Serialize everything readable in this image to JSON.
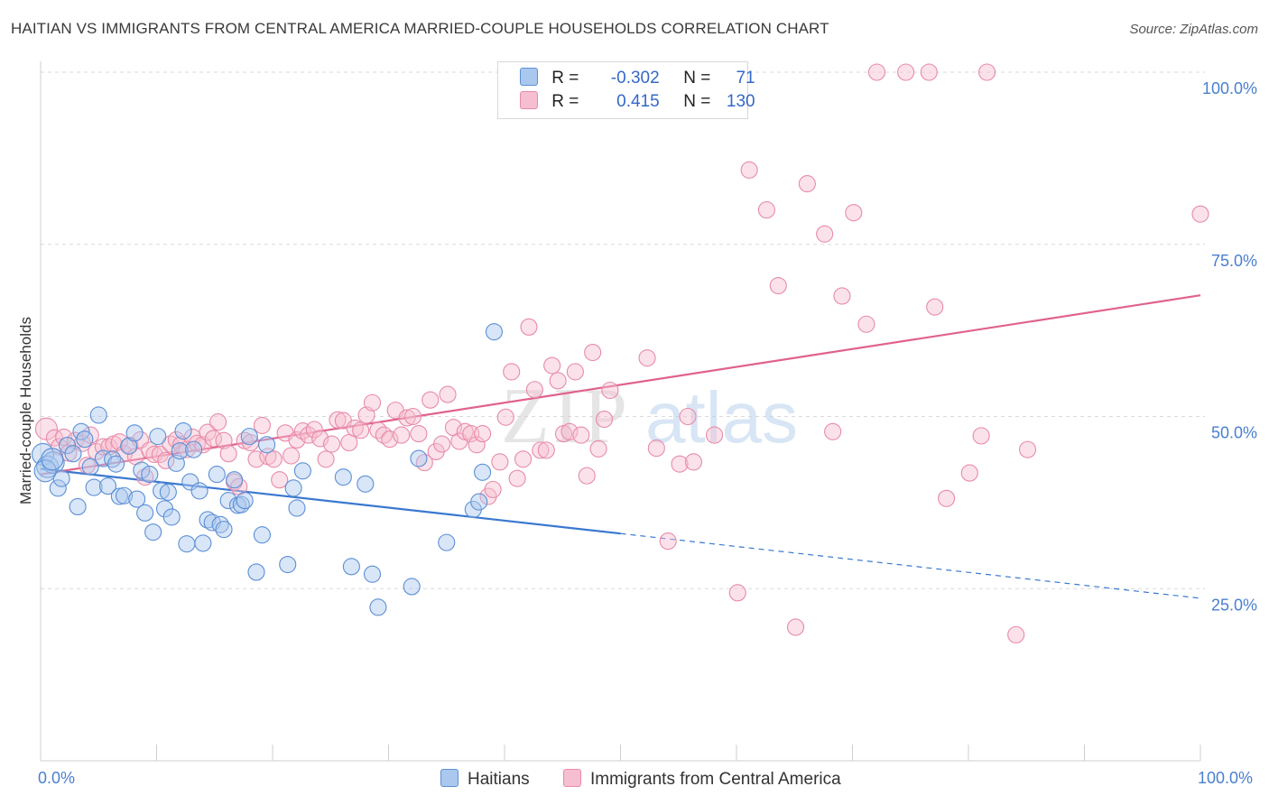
{
  "title": "HAITIAN VS IMMIGRANTS FROM CENTRAL AMERICA MARRIED-COUPLE HOUSEHOLDS CORRELATION CHART",
  "source": "Source: ZipAtlas.com",
  "watermark": {
    "zip": "ZIP",
    "atlas": "atlas"
  },
  "colors": {
    "blue_fill": "#aac8ee",
    "blue_stroke": "#5b8fd6",
    "blue_line": "#3a78d0",
    "pink_fill": "#f6bfd1",
    "pink_stroke": "#e88aa8",
    "pink_line": "#e0628c",
    "grid": "#d9d9d9",
    "tick_text": "#4a7fd0"
  },
  "legend": {
    "rows": [
      {
        "r_label": "R =",
        "r_value": "-0.302",
        "n_label": "N =",
        "n_value": "71"
      },
      {
        "r_label": "R =",
        "r_value": "0.415",
        "n_label": "N =",
        "n_value": "130"
      }
    ]
  },
  "bottom_legend": {
    "haitians": "Haitians",
    "central_america": "Immigrants from Central America"
  },
  "chart_data": {
    "type": "scatter",
    "title": "HAITIAN VS IMMIGRANTS FROM CENTRAL AMERICA MARRIED-COUPLE HOUSEHOLDS CORRELATION CHART",
    "xlabel": "",
    "ylabel": "Married-couple Households",
    "xlim": [
      0,
      100
    ],
    "ylim": [
      0,
      102
    ],
    "x_tick_labels": {
      "min": "0.0%",
      "max": "100.0%"
    },
    "y_ticks": [
      {
        "value": 25,
        "label": "25.0%"
      },
      {
        "value": 50,
        "label": "50.0%"
      },
      {
        "value": 75,
        "label": "75.0%"
      },
      {
        "value": 100,
        "label": "100.0%"
      }
    ],
    "grid": true,
    "legend_position": "top-center",
    "series": [
      {
        "name": "Haitians",
        "color": "blue",
        "trend": {
          "x0": 0,
          "y0": 42.4,
          "x1": 50,
          "y1": 33.0,
          "dashed_to_x": 100,
          "dashed_to_y": 23.6
        },
        "points": [
          [
            0.2,
            44.5
          ],
          [
            0.6,
            42.7
          ],
          [
            1.1,
            43.3
          ],
          [
            1.5,
            39.6
          ],
          [
            1.8,
            41.0
          ],
          [
            2.3,
            45.8
          ],
          [
            2.8,
            44.6
          ],
          [
            3.2,
            36.9
          ],
          [
            3.5,
            47.8
          ],
          [
            3.8,
            46.7
          ],
          [
            4.3,
            42.7
          ],
          [
            4.6,
            39.7
          ],
          [
            5.0,
            50.2
          ],
          [
            5.4,
            43.9
          ],
          [
            5.8,
            39.9
          ],
          [
            6.2,
            43.8
          ],
          [
            6.5,
            43.1
          ],
          [
            6.8,
            38.4
          ],
          [
            7.2,
            38.5
          ],
          [
            7.6,
            45.7
          ],
          [
            8.1,
            47.6
          ],
          [
            8.3,
            38.0
          ],
          [
            8.7,
            42.2
          ],
          [
            9.0,
            36.0
          ],
          [
            9.4,
            41.6
          ],
          [
            9.7,
            33.2
          ],
          [
            10.1,
            47.1
          ],
          [
            10.4,
            39.2
          ],
          [
            10.7,
            36.6
          ],
          [
            11.0,
            39.0
          ],
          [
            11.3,
            35.4
          ],
          [
            11.7,
            43.2
          ],
          [
            12.0,
            45.0
          ],
          [
            12.3,
            47.9
          ],
          [
            12.6,
            31.5
          ],
          [
            12.9,
            40.5
          ],
          [
            13.2,
            45.2
          ],
          [
            13.7,
            39.2
          ],
          [
            14.0,
            31.6
          ],
          [
            14.4,
            35.0
          ],
          [
            14.8,
            34.6
          ],
          [
            15.2,
            41.6
          ],
          [
            15.5,
            34.3
          ],
          [
            15.8,
            33.6
          ],
          [
            16.2,
            37.8
          ],
          [
            16.7,
            40.8
          ],
          [
            17.0,
            37.1
          ],
          [
            17.3,
            37.2
          ],
          [
            17.6,
            37.8
          ],
          [
            18.0,
            47.1
          ],
          [
            18.6,
            27.4
          ],
          [
            19.1,
            32.8
          ],
          [
            19.5,
            45.9
          ],
          [
            21.3,
            28.5
          ],
          [
            21.8,
            39.6
          ],
          [
            22.1,
            36.7
          ],
          [
            22.6,
            42.1
          ],
          [
            26.1,
            41.2
          ],
          [
            26.8,
            28.2
          ],
          [
            28.0,
            40.2
          ],
          [
            28.6,
            27.1
          ],
          [
            29.1,
            22.3
          ],
          [
            32.0,
            25.3
          ],
          [
            32.6,
            43.9
          ],
          [
            35.0,
            31.7
          ],
          [
            37.3,
            36.5
          ],
          [
            37.8,
            37.6
          ],
          [
            38.1,
            41.9
          ],
          [
            39.1,
            62.3
          ],
          [
            0.4,
            42.1
          ],
          [
            1.0,
            43.8
          ]
        ]
      },
      {
        "name": "Immigrants from Central America",
        "color": "pink",
        "trend": {
          "x0": 0,
          "y0": 41.6,
          "x1": 100,
          "y1": 67.6
        },
        "points": [
          [
            0.5,
            48.2
          ],
          [
            1.2,
            46.9
          ],
          [
            1.6,
            45.6
          ],
          [
            2.0,
            47.0
          ],
          [
            2.4,
            44.7
          ],
          [
            3.0,
            46.5
          ],
          [
            3.6,
            46.1
          ],
          [
            4.0,
            42.9
          ],
          [
            4.3,
            47.3
          ],
          [
            4.8,
            44.9
          ],
          [
            5.4,
            45.6
          ],
          [
            5.9,
            45.6
          ],
          [
            6.3,
            46.0
          ],
          [
            6.8,
            46.3
          ],
          [
            7.2,
            44.6
          ],
          [
            7.7,
            45.8
          ],
          [
            8.2,
            44.2
          ],
          [
            8.6,
            46.6
          ],
          [
            9.0,
            41.2
          ],
          [
            9.4,
            45.1
          ],
          [
            9.8,
            44.5
          ],
          [
            10.3,
            44.5
          ],
          [
            10.8,
            43.6
          ],
          [
            11.2,
            46.0
          ],
          [
            11.7,
            46.6
          ],
          [
            12.1,
            45.9
          ],
          [
            12.6,
            45.2
          ],
          [
            13.1,
            47.0
          ],
          [
            13.5,
            46.1
          ],
          [
            14.0,
            45.9
          ],
          [
            14.4,
            47.7
          ],
          [
            14.9,
            46.8
          ],
          [
            15.3,
            49.2
          ],
          [
            15.8,
            46.5
          ],
          [
            16.2,
            44.6
          ],
          [
            16.7,
            40.5
          ],
          [
            17.1,
            39.8
          ],
          [
            17.6,
            46.5
          ],
          [
            18.1,
            46.2
          ],
          [
            18.6,
            43.8
          ],
          [
            19.1,
            48.7
          ],
          [
            19.6,
            44.2
          ],
          [
            20.1,
            43.8
          ],
          [
            20.6,
            40.8
          ],
          [
            21.1,
            47.6
          ],
          [
            21.6,
            44.3
          ],
          [
            22.1,
            46.6
          ],
          [
            22.6,
            47.9
          ],
          [
            23.1,
            47.3
          ],
          [
            23.6,
            48.1
          ],
          [
            24.1,
            46.8
          ],
          [
            24.6,
            43.8
          ],
          [
            25.1,
            46.0
          ],
          [
            25.6,
            49.5
          ],
          [
            26.1,
            49.4
          ],
          [
            26.6,
            46.2
          ],
          [
            27.1,
            48.3
          ],
          [
            27.6,
            48.0
          ],
          [
            28.1,
            50.2
          ],
          [
            28.6,
            52.0
          ],
          [
            29.1,
            48.0
          ],
          [
            29.6,
            47.3
          ],
          [
            30.1,
            46.7
          ],
          [
            30.6,
            50.9
          ],
          [
            31.1,
            47.3
          ],
          [
            31.6,
            49.8
          ],
          [
            32.1,
            50.0
          ],
          [
            32.6,
            47.5
          ],
          [
            33.1,
            43.3
          ],
          [
            33.6,
            52.4
          ],
          [
            34.1,
            44.9
          ],
          [
            34.6,
            46.0
          ],
          [
            35.1,
            53.2
          ],
          [
            35.6,
            48.4
          ],
          [
            36.1,
            46.4
          ],
          [
            36.6,
            47.8
          ],
          [
            37.1,
            47.5
          ],
          [
            37.6,
            45.9
          ],
          [
            38.1,
            47.5
          ],
          [
            38.6,
            38.4
          ],
          [
            39.0,
            39.4
          ],
          [
            39.6,
            43.4
          ],
          [
            40.1,
            49.9
          ],
          [
            40.6,
            56.5
          ],
          [
            41.1,
            41.0
          ],
          [
            41.6,
            43.8
          ],
          [
            42.1,
            63.0
          ],
          [
            42.6,
            53.9
          ],
          [
            43.1,
            45.1
          ],
          [
            43.6,
            45.1
          ],
          [
            44.1,
            57.4
          ],
          [
            44.6,
            55.2
          ],
          [
            45.1,
            47.5
          ],
          [
            45.6,
            47.8
          ],
          [
            46.1,
            56.5
          ],
          [
            46.6,
            47.3
          ],
          [
            47.1,
            41.4
          ],
          [
            47.6,
            59.3
          ],
          [
            48.1,
            45.3
          ],
          [
            48.6,
            49.6
          ],
          [
            49.1,
            53.8
          ],
          [
            52.3,
            58.5
          ],
          [
            53.1,
            45.4
          ],
          [
            54.1,
            31.9
          ],
          [
            55.1,
            43.1
          ],
          [
            55.8,
            50.0
          ],
          [
            56.3,
            43.4
          ],
          [
            58.1,
            47.3
          ],
          [
            60.1,
            24.4
          ],
          [
            61.1,
            85.8
          ],
          [
            62.6,
            80.0
          ],
          [
            63.6,
            69.0
          ],
          [
            65.1,
            19.4
          ],
          [
            66.1,
            83.8
          ],
          [
            67.6,
            76.5
          ],
          [
            68.3,
            47.8
          ],
          [
            69.1,
            67.5
          ],
          [
            70.1,
            79.6
          ],
          [
            71.2,
            63.4
          ],
          [
            72.1,
            100.0
          ],
          [
            74.6,
            100.0
          ],
          [
            76.6,
            100.0
          ],
          [
            77.1,
            65.9
          ],
          [
            78.1,
            38.1
          ],
          [
            80.1,
            41.8
          ],
          [
            81.1,
            47.2
          ],
          [
            81.6,
            100.0
          ],
          [
            84.1,
            18.3
          ],
          [
            85.1,
            45.2
          ],
          [
            100.0,
            79.4
          ]
        ]
      }
    ]
  }
}
